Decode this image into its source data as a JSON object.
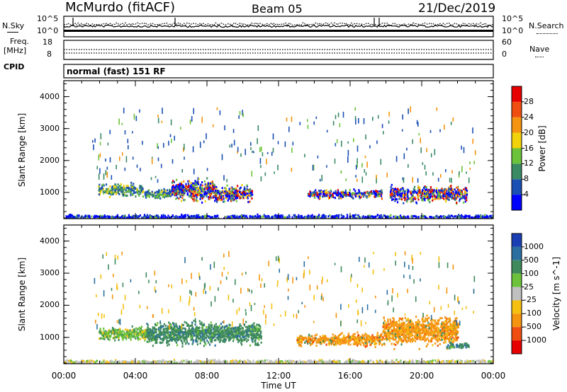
{
  "header": {
    "station": "McMurdo (fitACF)",
    "beam": "Beam 05",
    "date": "21/Dec/2019"
  },
  "panels": {
    "nsky": {
      "label": "N.Sky",
      "ticks": [
        "10^5",
        "10^0"
      ]
    },
    "nsearch": {
      "label": "N.Search",
      "ticks": [
        "10^5",
        "10^0"
      ]
    },
    "freq": {
      "label_top": "Freq.",
      "label_unit": "[MHz]",
      "ticks": [
        "18",
        "8"
      ]
    },
    "nave": {
      "label": "Nave",
      "ticks": [
        "60",
        "0"
      ]
    },
    "cpid": {
      "label": "CPID",
      "value": "normal (fast) 151 RF"
    }
  },
  "chart_data": [
    {
      "type": "heatmap",
      "title": "",
      "xlabel": "",
      "ylabel": "Slant Range [km]",
      "x_ticks": [
        "00:00",
        "04:00",
        "08:00",
        "12:00",
        "16:00",
        "20:00",
        "00:00"
      ],
      "xlim": [
        0,
        24
      ],
      "y_ticks": [
        "1000",
        "2000",
        "3000",
        "4000"
      ],
      "ylim": [
        180,
        4500
      ],
      "colorbar": {
        "label": "Power [dB]",
        "tick_labels": [
          "4",
          "8",
          "12",
          "16",
          "20",
          "24",
          "28"
        ],
        "colors": [
          "#0000ff",
          "#1a4fb4",
          "#3a8a64",
          "#6cc23a",
          "#f2d20a",
          "#f59410",
          "#f04e10",
          "#e60000"
        ]
      },
      "echo_regions": [
        {
          "t0": 1.9,
          "t1": 4.4,
          "r0": 850,
          "r1": 1350,
          "dominant": "green"
        },
        {
          "t0": 4.5,
          "t1": 6.0,
          "r0": 800,
          "r1": 1200,
          "dominant": "green"
        },
        {
          "t0": 6.0,
          "t1": 8.4,
          "r0": 650,
          "r1": 1550,
          "dominant": "mixed"
        },
        {
          "t0": 8.4,
          "t1": 10.5,
          "r0": 650,
          "r1": 1300,
          "dominant": "mixed"
        },
        {
          "t0": 13.6,
          "t1": 17.8,
          "r0": 800,
          "r1": 1150,
          "dominant": "mixed"
        },
        {
          "t0": 18.2,
          "t1": 22.5,
          "r0": 650,
          "r1": 1300,
          "dominant": "mixed"
        },
        {
          "t0": 0.0,
          "t1": 24.0,
          "r0": 180,
          "r1": 350,
          "dominant": "blue"
        }
      ]
    },
    {
      "type": "heatmap",
      "title": "",
      "xlabel": "Time UT",
      "ylabel": "Slant Range [km]",
      "x_ticks": [
        "00:00",
        "04:00",
        "08:00",
        "12:00",
        "16:00",
        "20:00",
        "00:00"
      ],
      "xlim": [
        0,
        24
      ],
      "y_ticks": [
        "1000",
        "2000",
        "3000",
        "4000"
      ],
      "ylim": [
        180,
        4500
      ],
      "colorbar": {
        "label": "Velocity [m s^-1]",
        "tick_labels": [
          "1000",
          "500",
          "100",
          "25",
          "-25",
          "-100",
          "-500",
          "-1000"
        ],
        "colors": [
          "#1a3fb4",
          "#2a6fa0",
          "#3f8a5c",
          "#6cc23a",
          "#c0c0c0",
          "#f5c010",
          "#f59410",
          "#f04e10",
          "#e60000"
        ]
      },
      "echo_regions": [
        {
          "t0": 1.9,
          "t1": 4.6,
          "r0": 850,
          "r1": 1400,
          "dominant": "light-green"
        },
        {
          "t0": 4.6,
          "t1": 11.0,
          "r0": 700,
          "r1": 1600,
          "dominant": "dark-green"
        },
        {
          "t0": 13.0,
          "t1": 17.8,
          "r0": 700,
          "r1": 1200,
          "dominant": "orange"
        },
        {
          "t0": 17.8,
          "t1": 22.0,
          "r0": 650,
          "r1": 1800,
          "dominant": "orange"
        },
        {
          "t0": 21.3,
          "t1": 22.6,
          "r0": 650,
          "r1": 900,
          "dominant": "dark-green"
        },
        {
          "t0": 0.0,
          "t1": 24.0,
          "r0": 180,
          "r1": 350,
          "dominant": "grey"
        }
      ]
    }
  ],
  "colors": {
    "frame": "#000000",
    "background": "#ffffff"
  }
}
